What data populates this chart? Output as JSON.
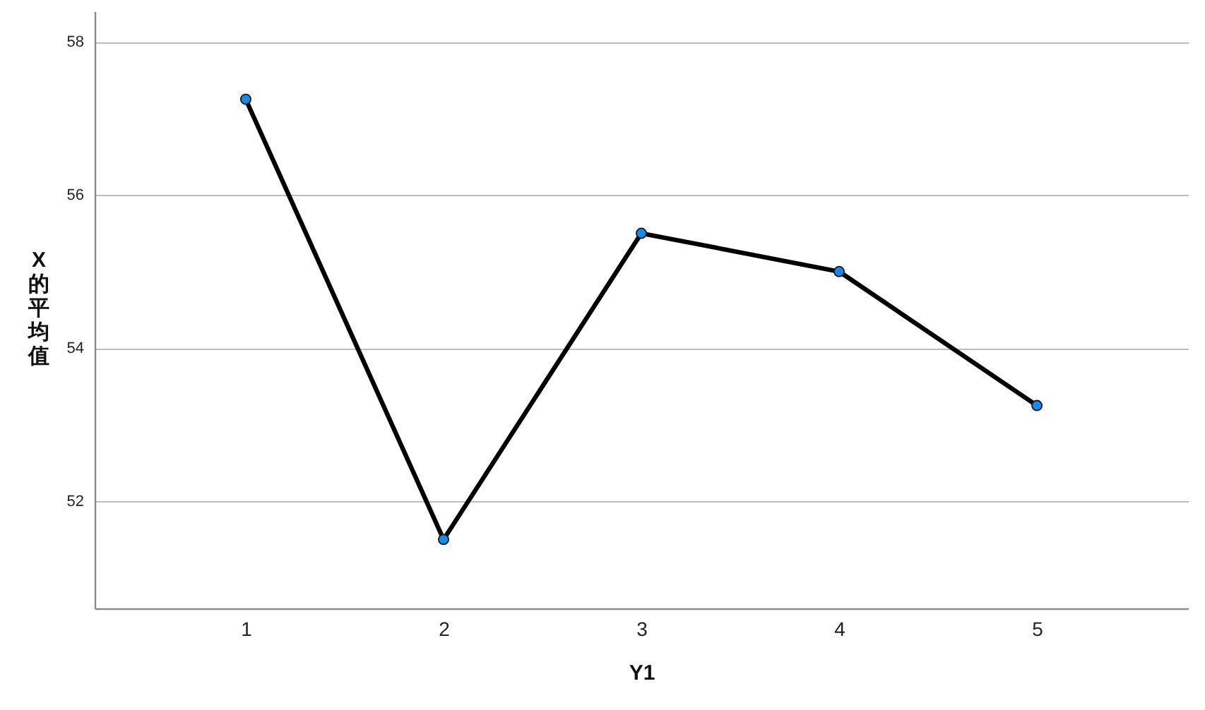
{
  "chart_data": {
    "type": "line",
    "xlabel": "Y1",
    "ylabel": "X的平均值",
    "categories": [
      "1",
      "2",
      "3",
      "4",
      "5"
    ],
    "series": [
      {
        "color": "#000000",
        "values": [
          57.25,
          51.5,
          55.5,
          55.0,
          53.25
        ]
      }
    ],
    "marker": "circle",
    "ylim": [
      50.6,
      58.4
    ],
    "yticks": [
      52,
      54,
      56,
      58
    ],
    "grid": "y"
  }
}
